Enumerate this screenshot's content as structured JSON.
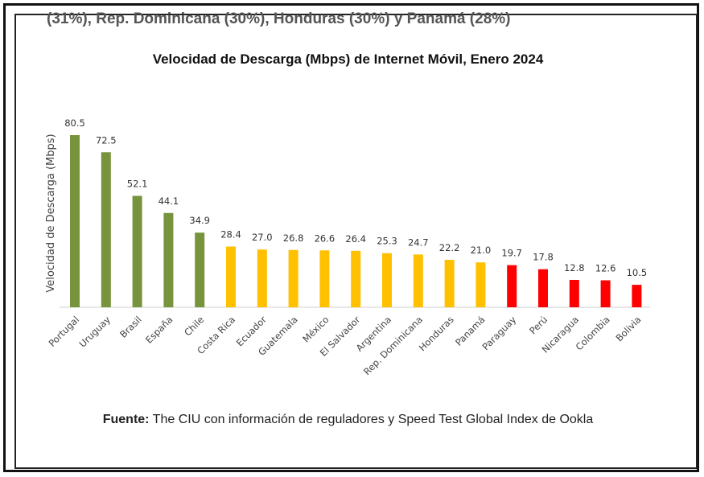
{
  "cropped_header": "(31%), Rep. Dominicana (30%), Honduras (30%) y Panamá (28%)",
  "source": {
    "label": "Fuente:",
    "text": " The CIU con información de reguladores y Speed Test Global Index de Ookla"
  },
  "chart_data": {
    "type": "bar",
    "title": "Velocidad de Descarga (Mbps) de Internet Móvil, Enero 2024",
    "xlabel": "",
    "ylabel": "Velocidad de Descarga (Mbps)",
    "ylim": [
      0,
      80.5
    ],
    "categories": [
      "Portugal",
      "Uruguay",
      "Brasil",
      "España",
      "Chile",
      "Costa Rica",
      "Ecuador",
      "Guatemala",
      "México",
      "El Salvador",
      "Argentina",
      "Rep. Dominicana",
      "Honduras",
      "Panamá",
      "Paraguay",
      "Perú",
      "Nicaragua",
      "Colombia",
      "Bolivia"
    ],
    "values": [
      80.5,
      72.5,
      52.1,
      44.1,
      34.9,
      28.4,
      27.0,
      26.8,
      26.6,
      26.4,
      25.3,
      24.7,
      22.2,
      21.0,
      19.7,
      17.8,
      12.8,
      12.6,
      10.5
    ],
    "value_labels": [
      "80.5",
      "72.5",
      "52.1",
      "44.1",
      "34.9",
      "28.4",
      "27.0",
      "26.8",
      "26.6",
      "26.4",
      "25.3",
      "24.7",
      "22.2",
      "21.0",
      "19.7",
      "17.8",
      "12.8",
      "12.6",
      "10.5"
    ],
    "bar_colors": [
      "#77933c",
      "#77933c",
      "#77933c",
      "#77933c",
      "#77933c",
      "#ffc000",
      "#ffc000",
      "#ffc000",
      "#ffc000",
      "#ffc000",
      "#ffc000",
      "#ffc000",
      "#ffc000",
      "#ffc000",
      "#ff0000",
      "#ff0000",
      "#ff0000",
      "#ff0000",
      "#ff0000"
    ],
    "legend": "none",
    "grid": false
  }
}
